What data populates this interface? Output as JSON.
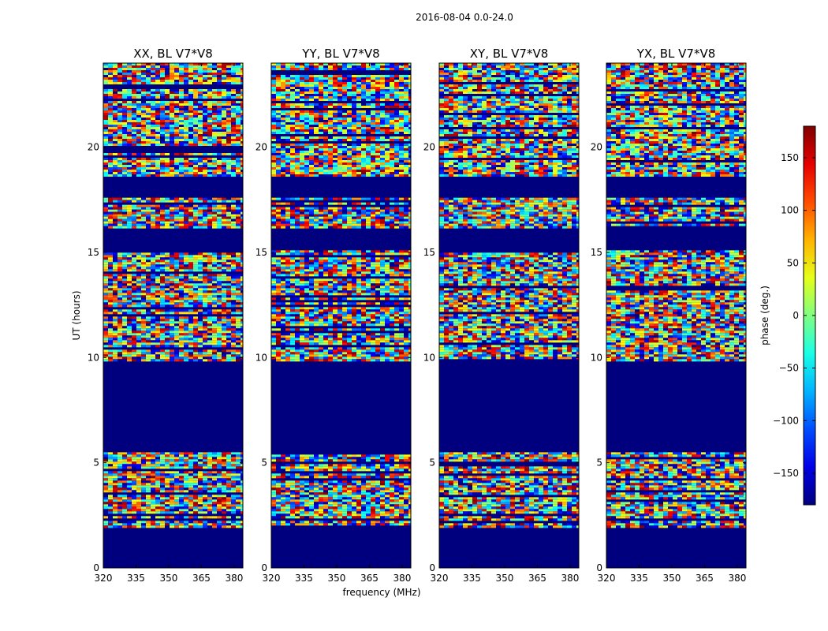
{
  "figure": {
    "suptitle": "2016-08-04 0.0-24.0"
  },
  "chart_data": {
    "type": "heatmap",
    "suptitle": "2016-08-04 0.0-24.0",
    "xlabel": "frequency (MHz)",
    "ylabel": "UT (hours)",
    "xlim": [
      320,
      384
    ],
    "ylim": [
      0,
      24
    ],
    "xticks": [
      "320",
      "335",
      "350",
      "365",
      "380"
    ],
    "yticks": [
      "0",
      "5",
      "10",
      "15",
      "20"
    ],
    "colorbar": {
      "label": "phase (deg.)",
      "range": [
        -180,
        180
      ],
      "ticks": [
        "−150",
        "−100",
        "−50",
        "0",
        "50",
        "100",
        "150"
      ],
      "colormap": "jet"
    },
    "panels": [
      {
        "title": "XX, BL V7*V8",
        "data_bands_ut": [
          [
            2.0,
            5.5
          ],
          [
            9.9,
            15.1
          ],
          [
            16.2,
            17.6
          ],
          [
            18.7,
            24.0
          ]
        ]
      },
      {
        "title": "YY, BL V7*V8",
        "data_bands_ut": [
          [
            2.0,
            5.5
          ],
          [
            9.9,
            15.1
          ],
          [
            16.2,
            17.6
          ],
          [
            18.7,
            24.0
          ]
        ]
      },
      {
        "title": "XY, BL V7*V8",
        "data_bands_ut": [
          [
            2.0,
            5.5
          ],
          [
            9.9,
            15.1
          ],
          [
            16.2,
            17.6
          ],
          [
            18.7,
            24.0
          ]
        ]
      },
      {
        "title": "YX, BL V7*V8",
        "data_bands_ut": [
          [
            2.0,
            5.5
          ],
          [
            9.9,
            15.1
          ],
          [
            16.2,
            17.6
          ],
          [
            18.7,
            24.0
          ]
        ]
      }
    ]
  }
}
